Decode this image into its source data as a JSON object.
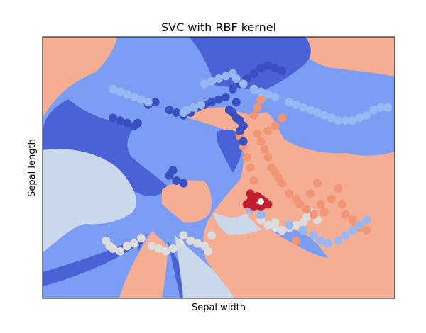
{
  "chart_data": {
    "type": "scatter",
    "title": "SVC with RBF kernel",
    "xlabel": "Sepal width",
    "ylabel": "Sepal length",
    "xticks": [],
    "yticks": [],
    "grid": false,
    "legend": "none",
    "xlim": [
      0,
      100
    ],
    "ylim": [
      0,
      100
    ],
    "colors": {
      "dark_blue": "#4b62d6",
      "mid_blue": "#7b9ef4",
      "pale_blue": "#cbd7ea",
      "salmon": "#f5ad93",
      "light_grey": "#dcdcdc",
      "coral": "#f19575",
      "deep_red": "#c21d2e",
      "navy_points": "#3a4fc0",
      "light_blue_points": "#98b8f4"
    },
    "series": [
      {
        "color": "light_grey",
        "points": [
          [
            18,
            22
          ],
          [
            19,
            20
          ],
          [
            20,
            19
          ],
          [
            22,
            18
          ],
          [
            24,
            20
          ],
          [
            26,
            21
          ],
          [
            28,
            23
          ],
          [
            31,
            20
          ],
          [
            33,
            19
          ],
          [
            35,
            18
          ],
          [
            37,
            19
          ],
          [
            39,
            21
          ],
          [
            40,
            24
          ],
          [
            42,
            22
          ],
          [
            44,
            21
          ],
          [
            46,
            20
          ],
          [
            47,
            18
          ],
          [
            48,
            24
          ],
          [
            62,
            30
          ],
          [
            64,
            28
          ],
          [
            66,
            27
          ],
          [
            68,
            26
          ],
          [
            70,
            27
          ],
          [
            72,
            28
          ],
          [
            74,
            29
          ],
          [
            75,
            31
          ],
          [
            76,
            33
          ],
          [
            78,
            30
          ],
          [
            66,
            29
          ]
        ]
      },
      {
        "color": "coral",
        "points": [
          [
            56,
            62
          ],
          [
            57,
            58
          ],
          [
            58,
            54
          ],
          [
            59,
            50
          ],
          [
            60,
            45
          ],
          [
            61,
            63
          ],
          [
            62,
            60
          ],
          [
            63,
            57
          ],
          [
            64,
            54
          ],
          [
            65,
            50
          ],
          [
            66,
            48
          ],
          [
            67,
            46
          ],
          [
            68,
            44
          ],
          [
            70,
            40
          ],
          [
            72,
            38
          ],
          [
            73,
            36
          ],
          [
            75,
            34
          ],
          [
            77,
            32
          ],
          [
            79,
            36
          ],
          [
            80,
            33
          ],
          [
            82,
            38
          ],
          [
            84,
            42
          ],
          [
            85,
            36
          ],
          [
            86,
            32
          ],
          [
            88,
            30
          ],
          [
            89,
            28
          ],
          [
            90,
            27
          ],
          [
            92,
            26
          ],
          [
            78,
            44
          ],
          [
            76,
            40
          ],
          [
            74,
            26
          ],
          [
            72,
            22
          ],
          [
            60,
            70
          ],
          [
            61,
            73
          ],
          [
            62,
            76
          ],
          [
            64,
            64
          ],
          [
            66,
            66
          ],
          [
            68,
            69
          ]
        ]
      },
      {
        "color": "navy_points",
        "points": [
          [
            20,
            69
          ],
          [
            22,
            68
          ],
          [
            24,
            67
          ],
          [
            26,
            66
          ],
          [
            27,
            67
          ],
          [
            30,
            74
          ],
          [
            32,
            75
          ],
          [
            36,
            72
          ],
          [
            38,
            71
          ],
          [
            40,
            70
          ],
          [
            42,
            71
          ],
          [
            44,
            73
          ],
          [
            46,
            74
          ],
          [
            48,
            75
          ],
          [
            50,
            76
          ],
          [
            52,
            77
          ],
          [
            53,
            72
          ],
          [
            54,
            71
          ],
          [
            55,
            69
          ],
          [
            56,
            68
          ],
          [
            57,
            66
          ],
          [
            55,
            75
          ],
          [
            54,
            80
          ],
          [
            56,
            82
          ],
          [
            58,
            84
          ],
          [
            60,
            86
          ],
          [
            62,
            88
          ],
          [
            64,
            89
          ],
          [
            66,
            88
          ],
          [
            68,
            87
          ],
          [
            57,
            60
          ],
          [
            56,
            64
          ],
          [
            36,
            47
          ],
          [
            38,
            45
          ],
          [
            37,
            49
          ],
          [
            40,
            44
          ]
        ]
      },
      {
        "color": "light_blue_points",
        "points": [
          [
            20,
            80
          ],
          [
            22,
            79
          ],
          [
            24,
            78
          ],
          [
            26,
            77
          ],
          [
            28,
            76
          ],
          [
            30,
            75
          ],
          [
            40,
            71
          ],
          [
            41,
            72
          ],
          [
            43,
            73
          ],
          [
            45,
            74
          ],
          [
            46,
            82
          ],
          [
            48,
            83
          ],
          [
            50,
            84
          ],
          [
            52,
            85
          ],
          [
            54,
            86
          ],
          [
            55,
            84
          ],
          [
            57,
            82
          ],
          [
            60,
            80
          ],
          [
            62,
            79
          ],
          [
            64,
            78
          ],
          [
            66,
            77
          ],
          [
            70,
            75
          ],
          [
            72,
            74
          ],
          [
            74,
            73
          ],
          [
            76,
            72
          ],
          [
            78,
            71
          ],
          [
            80,
            70
          ],
          [
            82,
            69
          ],
          [
            84,
            68
          ],
          [
            86,
            68
          ],
          [
            88,
            68
          ],
          [
            90,
            69
          ],
          [
            92,
            70
          ],
          [
            94,
            72
          ],
          [
            96,
            73
          ],
          [
            98,
            73
          ],
          [
            59,
            34
          ],
          [
            62,
            32
          ],
          [
            70,
            28
          ],
          [
            74,
            26
          ],
          [
            77,
            24
          ],
          [
            79,
            22
          ],
          [
            81,
            21
          ],
          [
            84,
            22
          ],
          [
            86,
            24
          ],
          [
            88,
            26
          ],
          [
            90,
            28
          ],
          [
            92,
            30
          ]
        ]
      },
      {
        "color": "deep_red",
        "points": [
          [
            58,
            36
          ],
          [
            59,
            37
          ],
          [
            60,
            38
          ],
          [
            61,
            39
          ],
          [
            62,
            38
          ],
          [
            63,
            37
          ],
          [
            64,
            36
          ],
          [
            60,
            35
          ],
          [
            62,
            35
          ],
          [
            59,
            40
          ]
        ]
      },
      {
        "color": "white_point",
        "points": [
          [
            62,
            37
          ]
        ]
      }
    ]
  }
}
